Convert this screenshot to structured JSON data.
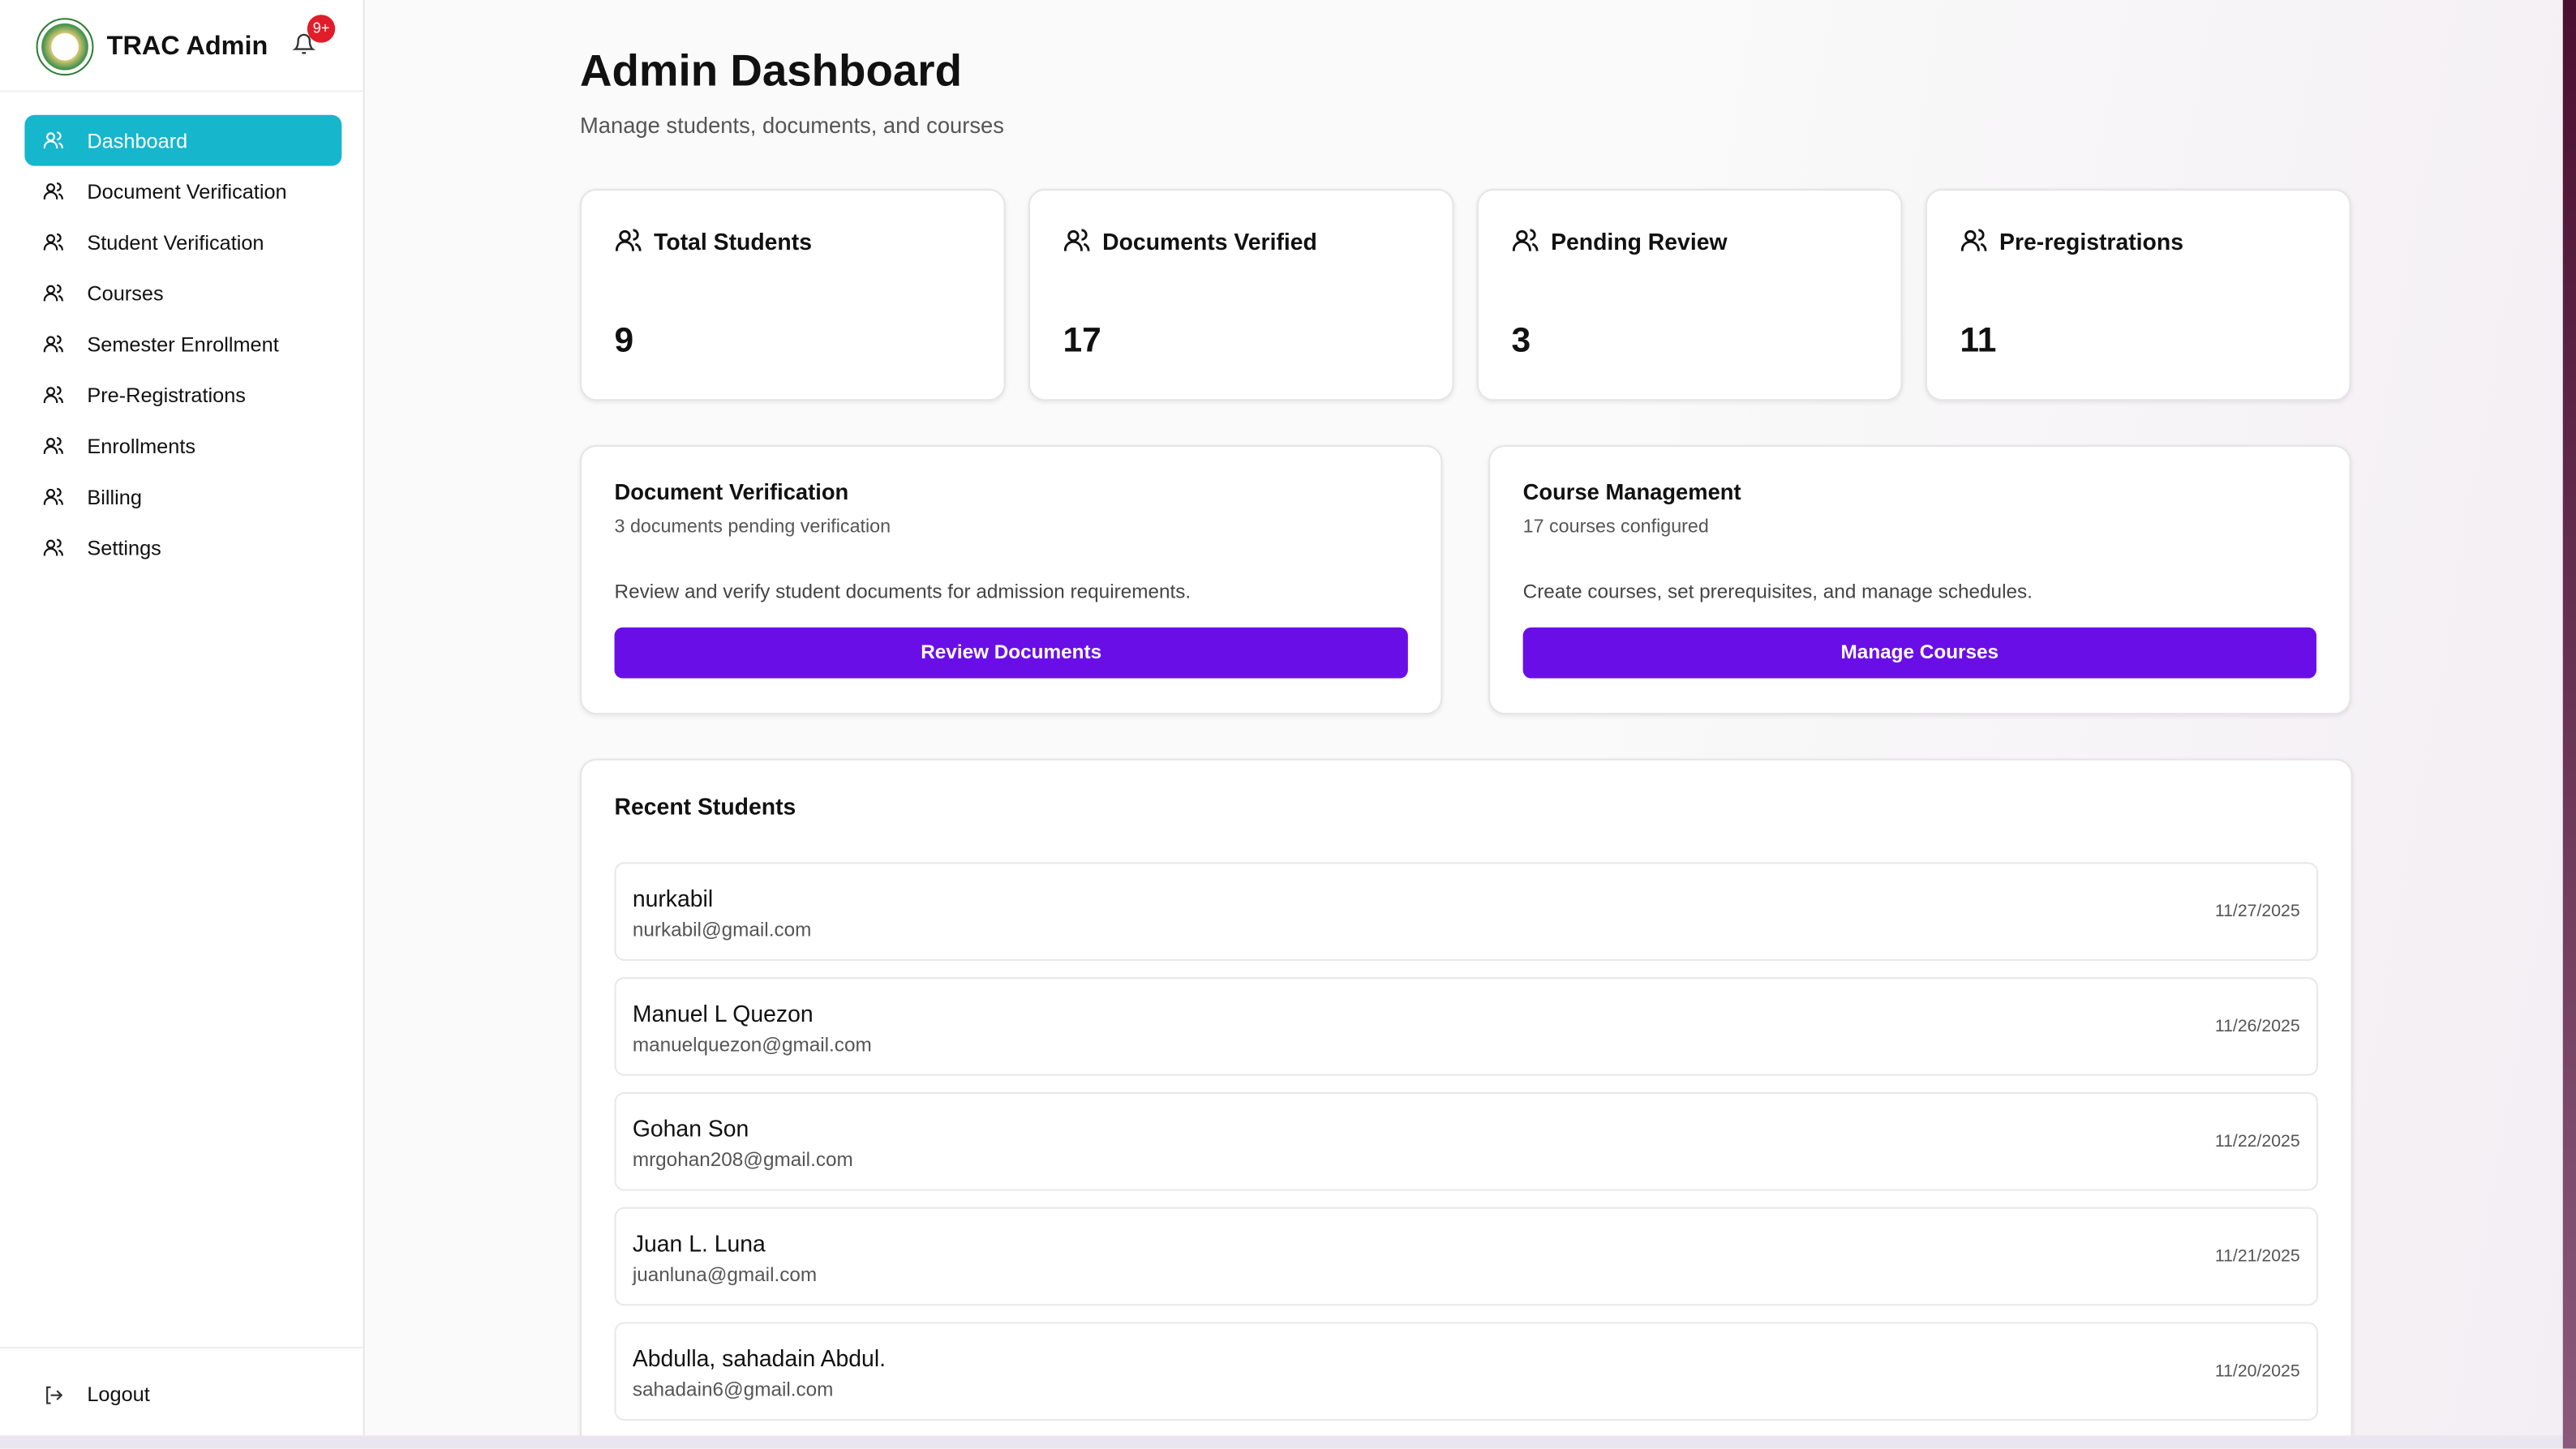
{
  "sidebar": {
    "brand": "TRAC Admin",
    "badge": "9+",
    "nav": [
      "Dashboard",
      "Document Verification",
      "Student Verification",
      "Courses",
      "Semester Enrollment",
      "Pre-Registrations",
      "Enrollments",
      "Billing",
      "Settings"
    ],
    "logout": "Logout"
  },
  "header": {
    "title": "Admin Dashboard",
    "subtitle": "Manage students, documents, and courses"
  },
  "stats": [
    {
      "label": "Total Students",
      "value": 9
    },
    {
      "label": "Documents Verified",
      "value": 17
    },
    {
      "label": "Pending Review",
      "value": 3
    },
    {
      "label": "Pre-registrations",
      "value": 11
    }
  ],
  "cards": [
    {
      "title": "Document Verification",
      "subtitle": "3 documents pending verification",
      "description": "Review and verify student documents for admission requirements.",
      "button": "Review Documents"
    },
    {
      "title": "Course Management",
      "subtitle": "17 courses configured",
      "description": "Create courses, set prerequisites, and manage schedules.",
      "button": "Manage Courses"
    }
  ],
  "recent": {
    "title": "Recent Students",
    "students": [
      {
        "name": "nurkabil",
        "email": "nurkabil@gmail.com",
        "date": "11/27/2025"
      },
      {
        "name": "Manuel L Quezon",
        "email": "manuelquezon@gmail.com",
        "date": "11/26/2025"
      },
      {
        "name": "Gohan Son",
        "email": "mrgohan208@gmail.com",
        "date": "11/22/2025"
      },
      {
        "name": "Juan L. Luna",
        "email": "juanluna@gmail.com",
        "date": "11/21/2025"
      },
      {
        "name": "Abdulla, sahadain Abdul.",
        "email": "sahadain6@gmail.com",
        "date": "11/20/2025"
      }
    ]
  }
}
